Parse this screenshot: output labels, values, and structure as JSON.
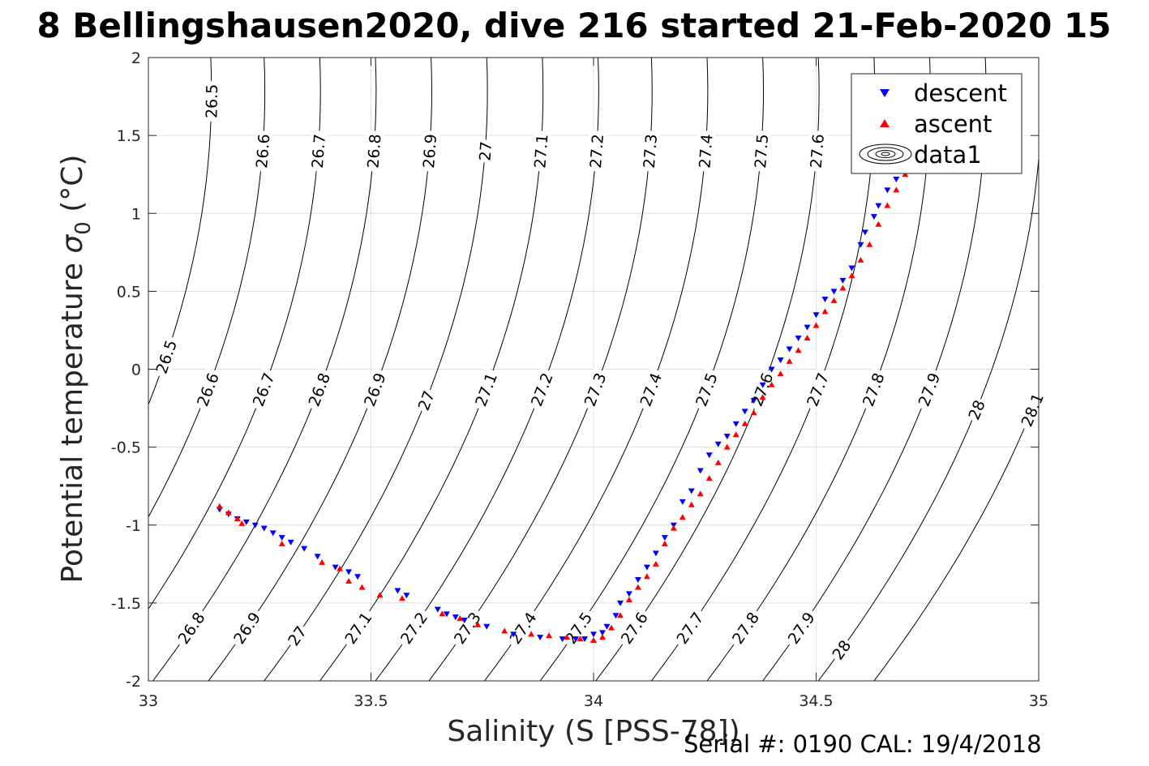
{
  "chart_data": {
    "type": "scatter",
    "title": "8 Bellingshausen2020, dive 216 started 21-Feb-2020 15",
    "xlabel": "Salinity (S [PSS-78])",
    "ylabel_text": "Potential temperature ",
    "ylabel_sigma": "σ",
    "ylabel_sub": "0",
    "ylabel_unit": " (°C)",
    "xlim": [
      33,
      35
    ],
    "ylim": [
      -2,
      2
    ],
    "xticks": [
      33,
      33.5,
      34,
      34.5,
      35
    ],
    "xtick_labels": [
      "33",
      "33.5",
      "34",
      "34.5",
      "35"
    ],
    "yticks": [
      -2,
      -1.5,
      -1,
      -0.5,
      0,
      0.5,
      1,
      1.5,
      2
    ],
    "ytick_labels": [
      "-2",
      "-1.5",
      "-1",
      "-0.5",
      "0",
      "0.5",
      "1",
      "1.5",
      "2"
    ],
    "grid": true,
    "legend": {
      "position": "top-right",
      "entries": [
        "descent",
        "ascent",
        "data1"
      ]
    },
    "density_contours": {
      "levels": [
        "26.5",
        "26.6",
        "26.7",
        "26.8",
        "26.9",
        "27",
        "27.1",
        "27.2",
        "27.3",
        "27.4",
        "27.5",
        "27.6",
        "27.7",
        "27.8",
        "27.9",
        "28",
        "28.1"
      ],
      "s_at_T0": [
        33.03,
        33.15,
        33.275,
        33.4,
        33.525,
        33.65,
        33.775,
        33.9,
        34.02,
        34.145,
        34.27,
        34.395,
        34.52,
        34.645,
        34.77,
        34.895,
        35.02
      ],
      "slope_dS_dT": 0.125,
      "curvature": -0.035,
      "labels": [
        {
          "level": "26.5",
          "T": 1.72
        },
        {
          "level": "26.6",
          "T": 1.4
        },
        {
          "level": "26.7",
          "T": 1.4
        },
        {
          "level": "26.8",
          "T": 1.4
        },
        {
          "level": "26.9",
          "T": 1.4
        },
        {
          "level": "27",
          "T": 1.4
        },
        {
          "level": "27.1",
          "T": 1.4
        },
        {
          "level": "27.2",
          "T": 1.4
        },
        {
          "level": "27.3",
          "T": 1.4
        },
        {
          "level": "27.4",
          "T": 1.4
        },
        {
          "level": "27.5",
          "T": 1.4
        },
        {
          "level": "27.6",
          "T": 1.4
        },
        {
          "level": "28",
          "T": 1.27
        },
        {
          "level": "26.5",
          "T": 0.08
        },
        {
          "level": "26.6",
          "T": -0.13
        },
        {
          "level": "26.7",
          "T": -0.13
        },
        {
          "level": "26.8",
          "T": -0.13
        },
        {
          "level": "26.9",
          "T": -0.13
        },
        {
          "level": "27",
          "T": -0.2
        },
        {
          "level": "27.1",
          "T": -0.13
        },
        {
          "level": "27.2",
          "T": -0.13
        },
        {
          "level": "27.3",
          "T": -0.13
        },
        {
          "level": "27.4",
          "T": -0.13
        },
        {
          "level": "27.5",
          "T": -0.13
        },
        {
          "level": "27.6",
          "T": -0.13
        },
        {
          "level": "27.7",
          "T": -0.13
        },
        {
          "level": "27.8",
          "T": -0.13
        },
        {
          "level": "27.9",
          "T": -0.13
        },
        {
          "level": "28",
          "T": -0.26
        },
        {
          "level": "28.1",
          "T": -0.26
        },
        {
          "level": "26.6",
          "T": -1.66
        },
        {
          "level": "26.7",
          "T": -1.66
        },
        {
          "level": "26.8",
          "T": -1.66
        },
        {
          "level": "26.9",
          "T": -1.66
        },
        {
          "level": "27",
          "T": -1.71
        },
        {
          "level": "27.1",
          "T": -1.66
        },
        {
          "level": "27.2",
          "T": -1.66
        },
        {
          "level": "27.3",
          "T": -1.66
        },
        {
          "level": "27.4",
          "T": -1.66
        },
        {
          "level": "27.5",
          "T": -1.66
        },
        {
          "level": "27.6",
          "T": -1.66
        },
        {
          "level": "27.7",
          "T": -1.66
        },
        {
          "level": "27.8",
          "T": -1.66
        },
        {
          "level": "27.9",
          "T": -1.66
        },
        {
          "level": "28",
          "T": -1.8
        }
      ]
    },
    "series": [
      {
        "name": "descent",
        "color": "#0000ff",
        "marker": "triangle-down",
        "points": [
          [
            33.16,
            -0.9
          ],
          [
            33.18,
            -0.93
          ],
          [
            33.2,
            -0.96
          ],
          [
            33.22,
            -0.98
          ],
          [
            33.24,
            -1.0
          ],
          [
            33.26,
            -1.02
          ],
          [
            33.28,
            -1.05
          ],
          [
            33.3,
            -1.08
          ],
          [
            33.32,
            -1.11
          ],
          [
            33.35,
            -1.15
          ],
          [
            33.38,
            -1.2
          ],
          [
            33.42,
            -1.27
          ],
          [
            33.45,
            -1.3
          ],
          [
            33.47,
            -1.33
          ],
          [
            33.56,
            -1.42
          ],
          [
            33.58,
            -1.45
          ],
          [
            33.65,
            -1.54
          ],
          [
            33.67,
            -1.57
          ],
          [
            33.69,
            -1.59
          ],
          [
            33.71,
            -1.61
          ],
          [
            33.76,
            -1.65
          ],
          [
            33.82,
            -1.7
          ],
          [
            33.88,
            -1.72
          ],
          [
            33.93,
            -1.73
          ],
          [
            33.96,
            -1.73
          ],
          [
            33.98,
            -1.73
          ],
          [
            34.0,
            -1.7
          ],
          [
            34.02,
            -1.69
          ],
          [
            34.03,
            -1.65
          ],
          [
            34.05,
            -1.58
          ],
          [
            34.06,
            -1.5
          ],
          [
            34.08,
            -1.44
          ],
          [
            34.1,
            -1.35
          ],
          [
            34.12,
            -1.27
          ],
          [
            34.14,
            -1.18
          ],
          [
            34.16,
            -1.08
          ],
          [
            34.18,
            -1.0
          ],
          [
            34.2,
            -0.85
          ],
          [
            34.22,
            -0.78
          ],
          [
            34.24,
            -0.65
          ],
          [
            34.26,
            -0.55
          ],
          [
            34.28,
            -0.48
          ],
          [
            34.3,
            -0.43
          ],
          [
            34.32,
            -0.35
          ],
          [
            34.34,
            -0.27
          ],
          [
            34.36,
            -0.2
          ],
          [
            34.38,
            -0.1
          ],
          [
            34.4,
            0.0
          ],
          [
            34.42,
            0.06
          ],
          [
            34.44,
            0.13
          ],
          [
            34.46,
            0.2
          ],
          [
            34.48,
            0.27
          ],
          [
            34.5,
            0.35
          ],
          [
            34.52,
            0.45
          ],
          [
            34.54,
            0.5
          ],
          [
            34.56,
            0.57
          ],
          [
            34.58,
            0.65
          ],
          [
            34.6,
            0.8
          ],
          [
            34.61,
            0.88
          ],
          [
            34.63,
            0.98
          ],
          [
            34.64,
            1.05
          ],
          [
            34.66,
            1.15
          ],
          [
            34.68,
            1.22
          ]
        ]
      },
      {
        "name": "ascent",
        "color": "#ff0000",
        "marker": "triangle-up",
        "points": [
          [
            33.16,
            -0.88
          ],
          [
            33.18,
            -0.92
          ],
          [
            33.2,
            -0.96
          ],
          [
            33.21,
            -0.99
          ],
          [
            33.3,
            -1.12
          ],
          [
            33.39,
            -1.24
          ],
          [
            33.43,
            -1.28
          ],
          [
            33.45,
            -1.36
          ],
          [
            33.48,
            -1.4
          ],
          [
            33.52,
            -1.45
          ],
          [
            33.57,
            -1.47
          ],
          [
            33.66,
            -1.57
          ],
          [
            33.7,
            -1.6
          ],
          [
            33.74,
            -1.64
          ],
          [
            33.8,
            -1.68
          ],
          [
            33.86,
            -1.7
          ],
          [
            33.9,
            -1.71
          ],
          [
            33.94,
            -1.72
          ],
          [
            33.97,
            -1.73
          ],
          [
            34.0,
            -1.74
          ],
          [
            34.02,
            -1.72
          ],
          [
            34.04,
            -1.66
          ],
          [
            34.06,
            -1.58
          ],
          [
            34.08,
            -1.48
          ],
          [
            34.1,
            -1.4
          ],
          [
            34.12,
            -1.33
          ],
          [
            34.14,
            -1.25
          ],
          [
            34.16,
            -1.12
          ],
          [
            34.18,
            -1.02
          ],
          [
            34.2,
            -0.95
          ],
          [
            34.22,
            -0.87
          ],
          [
            34.24,
            -0.8
          ],
          [
            34.26,
            -0.7
          ],
          [
            34.28,
            -0.6
          ],
          [
            34.3,
            -0.5
          ],
          [
            34.32,
            -0.42
          ],
          [
            34.34,
            -0.35
          ],
          [
            34.36,
            -0.28
          ],
          [
            34.38,
            -0.18
          ],
          [
            34.4,
            -0.1
          ],
          [
            34.42,
            -0.03
          ],
          [
            34.44,
            0.05
          ],
          [
            34.46,
            0.12
          ],
          [
            34.48,
            0.2
          ],
          [
            34.5,
            0.28
          ],
          [
            34.52,
            0.37
          ],
          [
            34.54,
            0.44
          ],
          [
            34.56,
            0.52
          ],
          [
            34.58,
            0.6
          ],
          [
            34.6,
            0.7
          ],
          [
            34.62,
            0.8
          ],
          [
            34.64,
            0.93
          ],
          [
            34.66,
            1.05
          ],
          [
            34.68,
            1.15
          ],
          [
            34.7,
            1.25
          ]
        ]
      }
    ]
  },
  "footer": "Serial #: 0190  CAL: 19/4/2018"
}
